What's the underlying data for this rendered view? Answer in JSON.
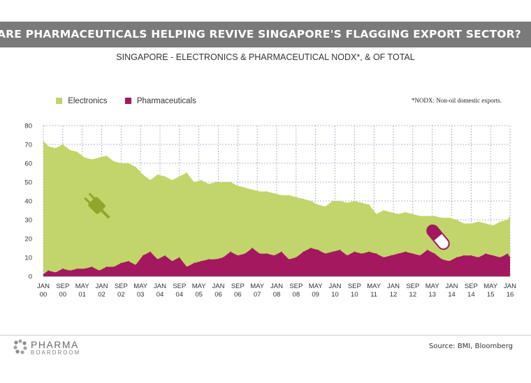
{
  "header": {
    "title": "ARE PHARMACEUTICALS HELPING REVIVE SINGAPORE'S FLAGGING EXPORT SECTOR?",
    "subtitle": "SINGAPORE - ELECTRONICS & PHARMACEUTICAL NODX*, & OF TOTAL"
  },
  "footnote": "*NODX: Non-oil domestic exports.",
  "footer": {
    "logo_line1": "PHARMA",
    "logo_line2": "BOARDROOM",
    "source": "Source: BMI, Bloomberg"
  },
  "colors": {
    "electronics": "#c2d56a",
    "pharmaceuticals": "#a3185f",
    "banner": "#7a7a7a",
    "grid": "#9aa3c8"
  },
  "chart_data": {
    "type": "area",
    "title": "SINGAPORE - ELECTRONICS & PHARMACEUTICAL NODX*, & OF TOTAL",
    "xlabel": "",
    "ylabel": "",
    "ylim": [
      0,
      80
    ],
    "yticks": [
      0,
      10,
      20,
      30,
      40,
      50,
      60,
      70,
      80
    ],
    "grid": true,
    "legend_position": "top-left",
    "x_tick_labels": [
      [
        "JAN",
        "00"
      ],
      [
        "SEP",
        "00"
      ],
      [
        "MAY",
        "01"
      ],
      [
        "JAN",
        "02"
      ],
      [
        "SEP",
        "02"
      ],
      [
        "MAY",
        "03"
      ],
      [
        "JAN",
        "04"
      ],
      [
        "SEP",
        "04"
      ],
      [
        "MAY",
        "05"
      ],
      [
        "JAN",
        "06"
      ],
      [
        "SEP",
        "06"
      ],
      [
        "MAY",
        "07"
      ],
      [
        "JAN",
        "08"
      ],
      [
        "SEP",
        "08"
      ],
      [
        "MAY",
        "09"
      ],
      [
        "JAN",
        "10"
      ],
      [
        "SEP",
        "10"
      ],
      [
        "MAY",
        "11"
      ],
      [
        "JAN",
        "12"
      ],
      [
        "SEP",
        "12"
      ],
      [
        "MAY",
        "13"
      ],
      [
        "JAN",
        "14"
      ],
      [
        "SEP",
        "14"
      ],
      [
        "MAY",
        "15"
      ],
      [
        "JAN",
        "16"
      ]
    ],
    "series": [
      {
        "name": "Electronics",
        "x": [
          "2000-01",
          "2000-03",
          "2000-06",
          "2000-09",
          "2000-12",
          "2001-03",
          "2001-06",
          "2001-09",
          "2001-12",
          "2002-03",
          "2002-06",
          "2002-09",
          "2002-12",
          "2003-03",
          "2003-06",
          "2003-09",
          "2003-12",
          "2004-03",
          "2004-06",
          "2004-09",
          "2004-12",
          "2005-03",
          "2005-06",
          "2005-09",
          "2005-12",
          "2006-03",
          "2006-06",
          "2006-09",
          "2006-12",
          "2007-03",
          "2007-06",
          "2007-09",
          "2007-12",
          "2008-03",
          "2008-06",
          "2008-09",
          "2008-12",
          "2009-03",
          "2009-06",
          "2009-09",
          "2009-12",
          "2010-03",
          "2010-06",
          "2010-09",
          "2010-12",
          "2011-03",
          "2011-06",
          "2011-09",
          "2011-12",
          "2012-03",
          "2012-06",
          "2012-09",
          "2012-12",
          "2013-03",
          "2013-06",
          "2013-09",
          "2013-12",
          "2014-03",
          "2014-06",
          "2014-09",
          "2014-12",
          "2015-03",
          "2015-06",
          "2015-09",
          "2015-12",
          "2016-01"
        ],
        "values": [
          72,
          69,
          68,
          70,
          67,
          66,
          63,
          62,
          63,
          64,
          61,
          60,
          60,
          58,
          54,
          51,
          54,
          53,
          51,
          53,
          55,
          50,
          51,
          49,
          50,
          50,
          50,
          48,
          47,
          46,
          45,
          45,
          44,
          43,
          43,
          42,
          41,
          40,
          38,
          37,
          40,
          40,
          39,
          40,
          39,
          38,
          33,
          35,
          34,
          33,
          34,
          33,
          32,
          32,
          32,
          31,
          31,
          30,
          28,
          28,
          29,
          28,
          27,
          29,
          30,
          32
        ]
      },
      {
        "name": "Pharmaceuticals",
        "x": [
          "2000-01",
          "2000-03",
          "2000-06",
          "2000-09",
          "2000-12",
          "2001-03",
          "2001-06",
          "2001-09",
          "2001-12",
          "2002-03",
          "2002-06",
          "2002-09",
          "2002-12",
          "2003-03",
          "2003-06",
          "2003-09",
          "2003-12",
          "2004-03",
          "2004-06",
          "2004-09",
          "2004-12",
          "2005-03",
          "2005-06",
          "2005-09",
          "2005-12",
          "2006-03",
          "2006-06",
          "2006-09",
          "2006-12",
          "2007-03",
          "2007-06",
          "2007-09",
          "2007-12",
          "2008-03",
          "2008-06",
          "2008-09",
          "2008-12",
          "2009-03",
          "2009-06",
          "2009-09",
          "2009-12",
          "2010-03",
          "2010-06",
          "2010-09",
          "2010-12",
          "2011-03",
          "2011-06",
          "2011-09",
          "2011-12",
          "2012-03",
          "2012-06",
          "2012-09",
          "2012-12",
          "2013-03",
          "2013-06",
          "2013-09",
          "2013-12",
          "2014-03",
          "2014-06",
          "2014-09",
          "2014-12",
          "2015-03",
          "2015-06",
          "2015-09",
          "2015-12",
          "2016-01"
        ],
        "values": [
          1,
          3,
          2,
          4,
          3,
          4,
          4,
          5,
          3,
          5,
          5,
          7,
          8,
          6,
          11,
          13,
          9,
          11,
          8,
          10,
          5,
          7,
          8,
          9,
          9,
          10,
          13,
          11,
          12,
          15,
          12,
          12,
          11,
          13,
          9,
          10,
          13,
          15,
          14,
          12,
          13,
          14,
          11,
          13,
          12,
          13,
          12,
          10,
          11,
          12,
          13,
          12,
          11,
          14,
          12,
          9,
          8,
          10,
          11,
          11,
          10,
          12,
          11,
          10,
          12,
          10
        ]
      }
    ]
  }
}
